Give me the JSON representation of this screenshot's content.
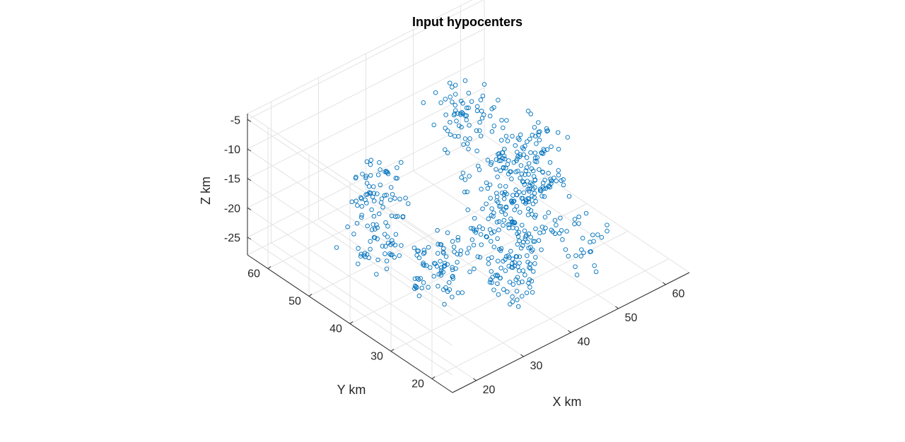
{
  "chart_data": {
    "type": "scatter",
    "title": "Input hypocenters",
    "xlabel": "X km",
    "ylabel": "Y km",
    "zlabel": "Z km",
    "xlim": [
      15,
      65
    ],
    "ylim": [
      15,
      65
    ],
    "zlim": [
      -28,
      -4
    ],
    "xticks": [
      20,
      30,
      40,
      50,
      60
    ],
    "yticks": [
      20,
      30,
      40,
      50,
      60
    ],
    "zticks": [
      -25,
      -20,
      -15,
      -10,
      -5
    ],
    "grid": true,
    "marker": "circle",
    "color": "#0072bd",
    "clusters": [
      {
        "x": [
          44,
          54
        ],
        "y": [
          31,
          41
        ],
        "z": [
          -26,
          -7
        ],
        "n": 200
      },
      {
        "x": [
          36,
          46
        ],
        "y": [
          30,
          40
        ],
        "z": [
          -26,
          -9
        ],
        "n": 100
      },
      {
        "x": [
          22,
          30
        ],
        "y": [
          42,
          50
        ],
        "z": [
          -25,
          -8
        ],
        "n": 110
      },
      {
        "x": [
          27,
          34
        ],
        "y": [
          32,
          40
        ],
        "z": [
          -27,
          -19
        ],
        "n": 75
      },
      {
        "x": [
          35,
          42
        ],
        "y": [
          24,
          30
        ],
        "z": [
          -27,
          -18
        ],
        "n": 65
      },
      {
        "x": [
          42,
          52
        ],
        "y": [
          44,
          54
        ],
        "z": [
          -14,
          -6
        ],
        "n": 70
      },
      {
        "x": [
          48,
          55
        ],
        "y": [
          22,
          28
        ],
        "z": [
          -26,
          -17
        ],
        "n": 25
      }
    ],
    "points": [
      {
        "x": 44.5,
        "y": 22.5,
        "z": -16
      },
      {
        "x": 45,
        "y": 21.8,
        "z": -16
      },
      {
        "x": 16.5,
        "y": 45,
        "z": -18
      }
    ]
  }
}
